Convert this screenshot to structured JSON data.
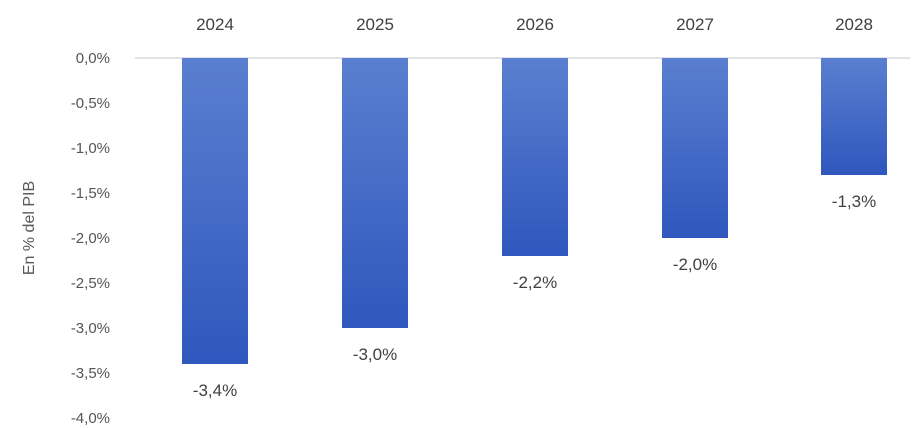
{
  "chart_data": {
    "type": "bar",
    "categories": [
      "2024",
      "2025",
      "2026",
      "2027",
      "2028"
    ],
    "values": [
      -3.4,
      -3.0,
      -2.2,
      -2.0,
      -1.3
    ],
    "data_labels": [
      "-3,4%",
      "-3,0%",
      "-2,2%",
      "-2,0%",
      "-1,3%"
    ],
    "ylabel": "En % del PIB",
    "xlabel": "",
    "ylim": [
      -4.0,
      0.0
    ],
    "y_ticks": [
      0.0,
      -0.5,
      -1.0,
      -1.5,
      -2.0,
      -2.5,
      -3.0,
      -3.5,
      -4.0
    ],
    "y_tick_labels": [
      "0,0%",
      "-0,5%",
      "-1,0%",
      "-1,5%",
      "-2,0%",
      "-2,5%",
      "-3,0%",
      "-3,5%",
      "-4,0%"
    ],
    "category_axis_position": "top",
    "grid": false,
    "legend": "none",
    "colors": {
      "bar_top": "#5a7fd0",
      "bar_bottom": "#2f57bd",
      "axis_line": "#d9d9d9"
    }
  }
}
